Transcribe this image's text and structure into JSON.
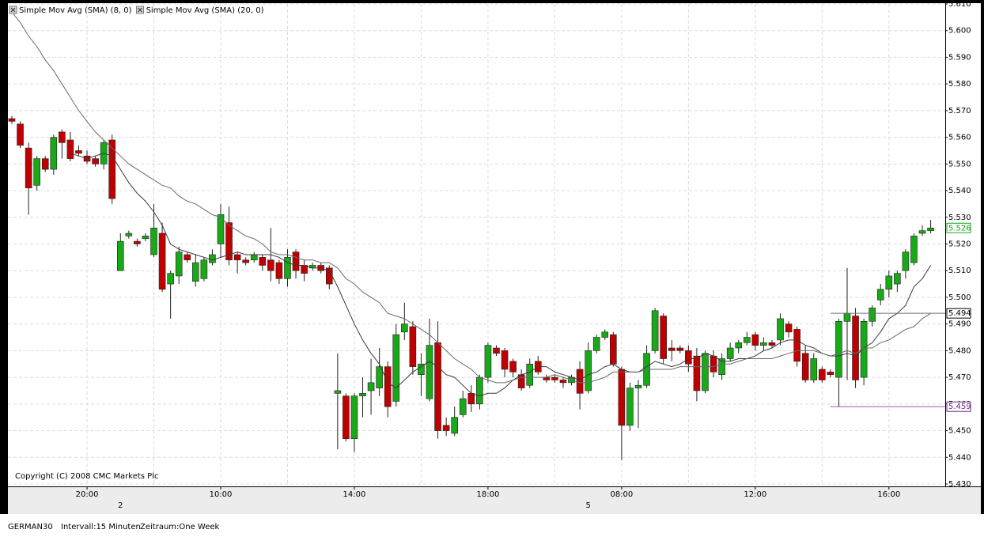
{
  "chart_data": {
    "type": "candlestick",
    "categories": [
      null,
      null,
      null,
      null,
      null,
      null,
      null,
      null,
      null,
      "20:00",
      null,
      null,
      null,
      null,
      null,
      null,
      null,
      null,
      null,
      null,
      null,
      null,
      null,
      null,
      null,
      "10:00",
      null,
      null,
      null,
      null,
      null,
      null,
      null,
      null,
      null,
      null,
      null,
      null,
      null,
      null,
      null,
      "14:00",
      null,
      null,
      null,
      null,
      null,
      null,
      null,
      null,
      null,
      null,
      null,
      null,
      null,
      null,
      null,
      "18:00",
      null,
      null,
      null,
      null,
      null,
      null,
      null,
      null,
      null,
      null,
      null,
      null,
      null,
      null,
      null,
      "08:00",
      null,
      null,
      null,
      null,
      null,
      null,
      null,
      null,
      null,
      null,
      null,
      null,
      null,
      null,
      null,
      "12:00",
      null,
      null,
      null,
      null,
      null,
      null,
      null,
      null,
      null,
      null,
      null,
      null,
      null,
      null,
      null,
      "16:00",
      null,
      null,
      null,
      null,
      null
    ],
    "day_labels": [
      null,
      null,
      null,
      null,
      null,
      null,
      null,
      null,
      null,
      null,
      null,
      null,
      null,
      "2",
      null,
      null,
      null,
      null,
      null,
      null,
      null,
      null,
      null,
      null,
      null,
      null,
      null,
      null,
      null,
      null,
      null,
      null,
      null,
      null,
      null,
      null,
      null,
      null,
      null,
      null,
      null,
      null,
      null,
      null,
      null,
      null,
      null,
      null,
      null,
      null,
      null,
      null,
      null,
      null,
      null,
      null,
      null,
      null,
      null,
      null,
      null,
      null,
      null,
      null,
      null,
      null,
      null,
      null,
      null,
      "5",
      null,
      null,
      null,
      null,
      null,
      null,
      null,
      null,
      null,
      null,
      null,
      null,
      null,
      null,
      null,
      null,
      null,
      null,
      null,
      null,
      null,
      null,
      null,
      null,
      null,
      null,
      null,
      null,
      null,
      null,
      null,
      null,
      null,
      null,
      null,
      null,
      null,
      null,
      null,
      null,
      null
    ],
    "open": [
      5567,
      5565,
      5556,
      5542,
      5552,
      5548,
      5562,
      5559,
      5555,
      5553,
      5552,
      5550,
      5559,
      5510,
      5523,
      5521,
      5522,
      5516,
      5524,
      5505,
      5508,
      5516,
      5506,
      5507,
      5513,
      5520,
      5528,
      5516,
      5514,
      5514,
      5515,
      5514,
      5513,
      5507,
      5517,
      5512,
      5511,
      5512,
      5511,
      5464,
      5463,
      5447,
      5463,
      5465,
      5466,
      5474,
      5461,
      5487,
      5489,
      5471,
      5462,
      5483,
      5452,
      5449,
      5456,
      5464,
      5460,
      5470,
      5481,
      5480,
      5476,
      5471,
      5467,
      5476,
      5470,
      5470,
      5469,
      5468,
      5473,
      5465,
      5480,
      5485,
      5486,
      5473,
      5452,
      5466,
      5467,
      5480,
      5493,
      5481,
      5481,
      5480,
      5478,
      5465,
      5478,
      5471,
      5477,
      5481,
      5483,
      5486,
      5482,
      5483,
      5484,
      5490,
      5488,
      5479,
      5469,
      5473,
      5472,
      5470,
      5491,
      5493,
      5470,
      5491,
      5499,
      5503,
      5505,
      5510,
      5513,
      5524,
      5525
    ],
    "high": [
      5568,
      5566,
      5558,
      5553,
      5553,
      5561,
      5563,
      5562,
      5557,
      5555,
      5553,
      5559,
      5561,
      5524,
      5525,
      5522,
      5524,
      5535,
      5528,
      5510,
      5519,
      5517,
      5516,
      5515,
      5518,
      5535,
      5534,
      5517,
      5515,
      5517,
      5516,
      5526,
      5514,
      5518,
      5518,
      5514,
      5513,
      5513,
      5512,
      5479,
      5464,
      5464,
      5470,
      5477,
      5481,
      5476,
      5490,
      5498,
      5491,
      5479,
      5492,
      5491,
      5455,
      5459,
      5465,
      5467,
      5471,
      5483,
      5482,
      5481,
      5477,
      5473,
      5477,
      5478,
      5471,
      5471,
      5470,
      5471,
      5476,
      5483,
      5486,
      5488,
      5487,
      5474,
      5468,
      5469,
      5482,
      5496,
      5494,
      5484,
      5482,
      5482,
      5481,
      5480,
      5480,
      5479,
      5483,
      5484,
      5487,
      5487,
      5485,
      5484,
      5494,
      5491,
      5489,
      5482,
      5479,
      5474,
      5473,
      5492,
      5511,
      5496,
      5492,
      5497,
      5505,
      5510,
      5510,
      5518,
      5524,
      5527,
      5529
    ],
    "low": [
      5565,
      5556,
      5531,
      5540,
      5547,
      5546,
      5552,
      5551,
      5553,
      5550,
      5549,
      5548,
      5535,
      5510,
      5522,
      5519,
      5521,
      5515,
      5502,
      5492,
      5505,
      5513,
      5504,
      5506,
      5512,
      5515,
      5512,
      5509,
      5512,
      5513,
      5510,
      5506,
      5505,
      5504,
      5507,
      5506,
      5510,
      5509,
      5503,
      5443,
      5446,
      5442,
      5455,
      5456,
      5463,
      5455,
      5459,
      5484,
      5471,
      5463,
      5461,
      5447,
      5448,
      5448,
      5455,
      5457,
      5458,
      5468,
      5478,
      5470,
      5470,
      5465,
      5466,
      5471,
      5468,
      5468,
      5466,
      5467,
      5458,
      5464,
      5479,
      5484,
      5474,
      5439,
      5450,
      5451,
      5466,
      5479,
      5475,
      5476,
      5479,
      5472,
      5461,
      5464,
      5470,
      5469,
      5476,
      5479,
      5482,
      5480,
      5480,
      5481,
      5482,
      5485,
      5474,
      5468,
      5468,
      5468,
      5470,
      5459,
      5469,
      5466,
      5467,
      5489,
      5497,
      5500,
      5502,
      5507,
      5512,
      5523,
      5524
    ],
    "close": [
      5566,
      5557,
      5541,
      5552,
      5548,
      5560,
      5558,
      5552,
      5554,
      5551,
      5550,
      5558,
      5537,
      5521,
      5524,
      5520,
      5523,
      5526,
      5503,
      5509,
      5517,
      5514,
      5513,
      5514,
      5516,
      5531,
      5514,
      5514,
      5513,
      5516,
      5512,
      5510,
      5507,
      5515,
      5510,
      5509,
      5512,
      5510,
      5505,
      5465,
      5447,
      5463,
      5464,
      5468,
      5474,
      5459,
      5486,
      5490,
      5474,
      5475,
      5482,
      5450,
      5450,
      5455,
      5462,
      5460,
      5470,
      5482,
      5479,
      5473,
      5472,
      5466,
      5475,
      5472,
      5469,
      5469,
      5468,
      5470,
      5464,
      5480,
      5485,
      5487,
      5475,
      5452,
      5466,
      5467,
      5479,
      5495,
      5477,
      5480,
      5480,
      5475,
      5465,
      5479,
      5472,
      5477,
      5481,
      5483,
      5485,
      5482,
      5483,
      5482,
      5492,
      5487,
      5476,
      5469,
      5477,
      5469,
      5471,
      5491,
      5494,
      5469,
      5491,
      5496,
      5503,
      5508,
      5509,
      5517,
      5523,
      5525,
      5526
    ],
    "up_color": "#18a818",
    "down_color": "#c00000",
    "series": [
      {
        "name": "Simple Mov Avg (SMA) (8, 0)",
        "color": "#3a3a3a",
        "values": [
          null,
          null,
          null,
          null,
          null,
          null,
          null,
          5554,
          5553,
          5552,
          5553,
          5554,
          5553,
          5548,
          5543,
          5539,
          5536,
          5532,
          5527,
          5520,
          5518,
          5517,
          5516,
          5515,
          5514,
          5515,
          5516,
          5517,
          5516,
          5516,
          5516,
          5516,
          5515,
          5513,
          5512,
          5512,
          5511,
          5511,
          5510,
          5504,
          5497,
          5490,
          5484,
          5479,
          5475,
          5468,
          5466,
          5469,
          5472,
          5474,
          5476,
          5474,
          5471,
          5470,
          5467,
          5464,
          5463,
          5464,
          5464,
          5466,
          5469,
          5471,
          5472,
          5474,
          5474,
          5472,
          5471,
          5470,
          5469,
          5471,
          5472,
          5474,
          5475,
          5473,
          5472,
          5472,
          5474,
          5476,
          5475,
          5474,
          5475,
          5477,
          5477,
          5479,
          5478,
          5476,
          5476,
          5477,
          5477,
          5478,
          5480,
          5481,
          5483,
          5484,
          5484,
          5482,
          5481,
          5479,
          5478,
          5478,
          5479,
          5478,
          5481,
          5483,
          5487,
          5492,
          5494,
          5497,
          5504,
          5507,
          5512
        ]
      },
      {
        "name": "Simple Mov Avg (SMA) (20, 0)",
        "color": "#6a6a6a",
        "values": [
          5607,
          5603,
          5598,
          5594,
          5589,
          5585,
          5580,
          5575,
          5570,
          5566,
          5562,
          5559,
          5556,
          5553,
          5550,
          5548,
          5546,
          5544,
          5542,
          5541,
          5538,
          5536,
          5535,
          5533,
          5531,
          5530,
          5527,
          5525,
          5523,
          5522,
          5520,
          5517,
          5516,
          5516,
          5515,
          5514,
          5514,
          5513,
          5513,
          5511,
          5507,
          5505,
          5502,
          5500,
          5498,
          5494,
          5493,
          5492,
          5490,
          5488,
          5486,
          5483,
          5480,
          5477,
          5475,
          5473,
          5470,
          5469,
          5468,
          5468,
          5469,
          5470,
          5470,
          5470,
          5470,
          5471,
          5470,
          5469,
          5468,
          5468,
          5469,
          5470,
          5472,
          5472,
          5472,
          5472,
          5473,
          5473,
          5473,
          5473,
          5474,
          5474,
          5474,
          5474,
          5474,
          5475,
          5475,
          5476,
          5477,
          5477,
          5477,
          5477,
          5478,
          5479,
          5480,
          5480,
          5480,
          5479,
          5478,
          5479,
          5480,
          5479,
          5481,
          5481,
          5483,
          5484,
          5486,
          5488,
          5489,
          5492,
          5494
        ]
      }
    ],
    "ylim": [
      5430,
      5610
    ],
    "yticks": [
      {
        "value": 5430,
        "label": "5.430"
      },
      {
        "value": 5440,
        "label": "5.440"
      },
      {
        "value": 5450,
        "label": "5.450"
      },
      {
        "value": 5460,
        "label": "5.460"
      },
      {
        "value": 5470,
        "label": "5.470"
      },
      {
        "value": 5480,
        "label": "5.480"
      },
      {
        "value": 5490,
        "label": "5.490"
      },
      {
        "value": 5500,
        "label": "5.500"
      },
      {
        "value": 5510,
        "label": "5.510"
      },
      {
        "value": 5520,
        "label": "5.520"
      },
      {
        "value": 5530,
        "label": "5.530"
      },
      {
        "value": 5540,
        "label": "5.540"
      },
      {
        "value": 5550,
        "label": "5.550"
      },
      {
        "value": 5560,
        "label": "5.560"
      },
      {
        "value": 5570,
        "label": "5.570"
      },
      {
        "value": 5580,
        "label": "5.580"
      },
      {
        "value": 5590,
        "label": "5.590"
      },
      {
        "value": 5600,
        "label": "5.600"
      },
      {
        "value": 5610,
        "label": "5.610"
      }
    ],
    "grid": true,
    "price_markers": [
      {
        "value": 5526,
        "label": "5.526",
        "color": "#18a818"
      },
      {
        "value": 5494,
        "label": "5.494",
        "color": "#000000",
        "line_color": "#707070"
      },
      {
        "value": 5459,
        "label": "5.459",
        "color": "#6a2a80",
        "line_color": "#9a5aaa"
      }
    ],
    "copyright": "Copyright (C) 2008 CMC Markets Plc",
    "instrument": "GERMAN30",
    "interval": "Intervall:15 Minuten",
    "period": "Zeitraum:One Week"
  }
}
